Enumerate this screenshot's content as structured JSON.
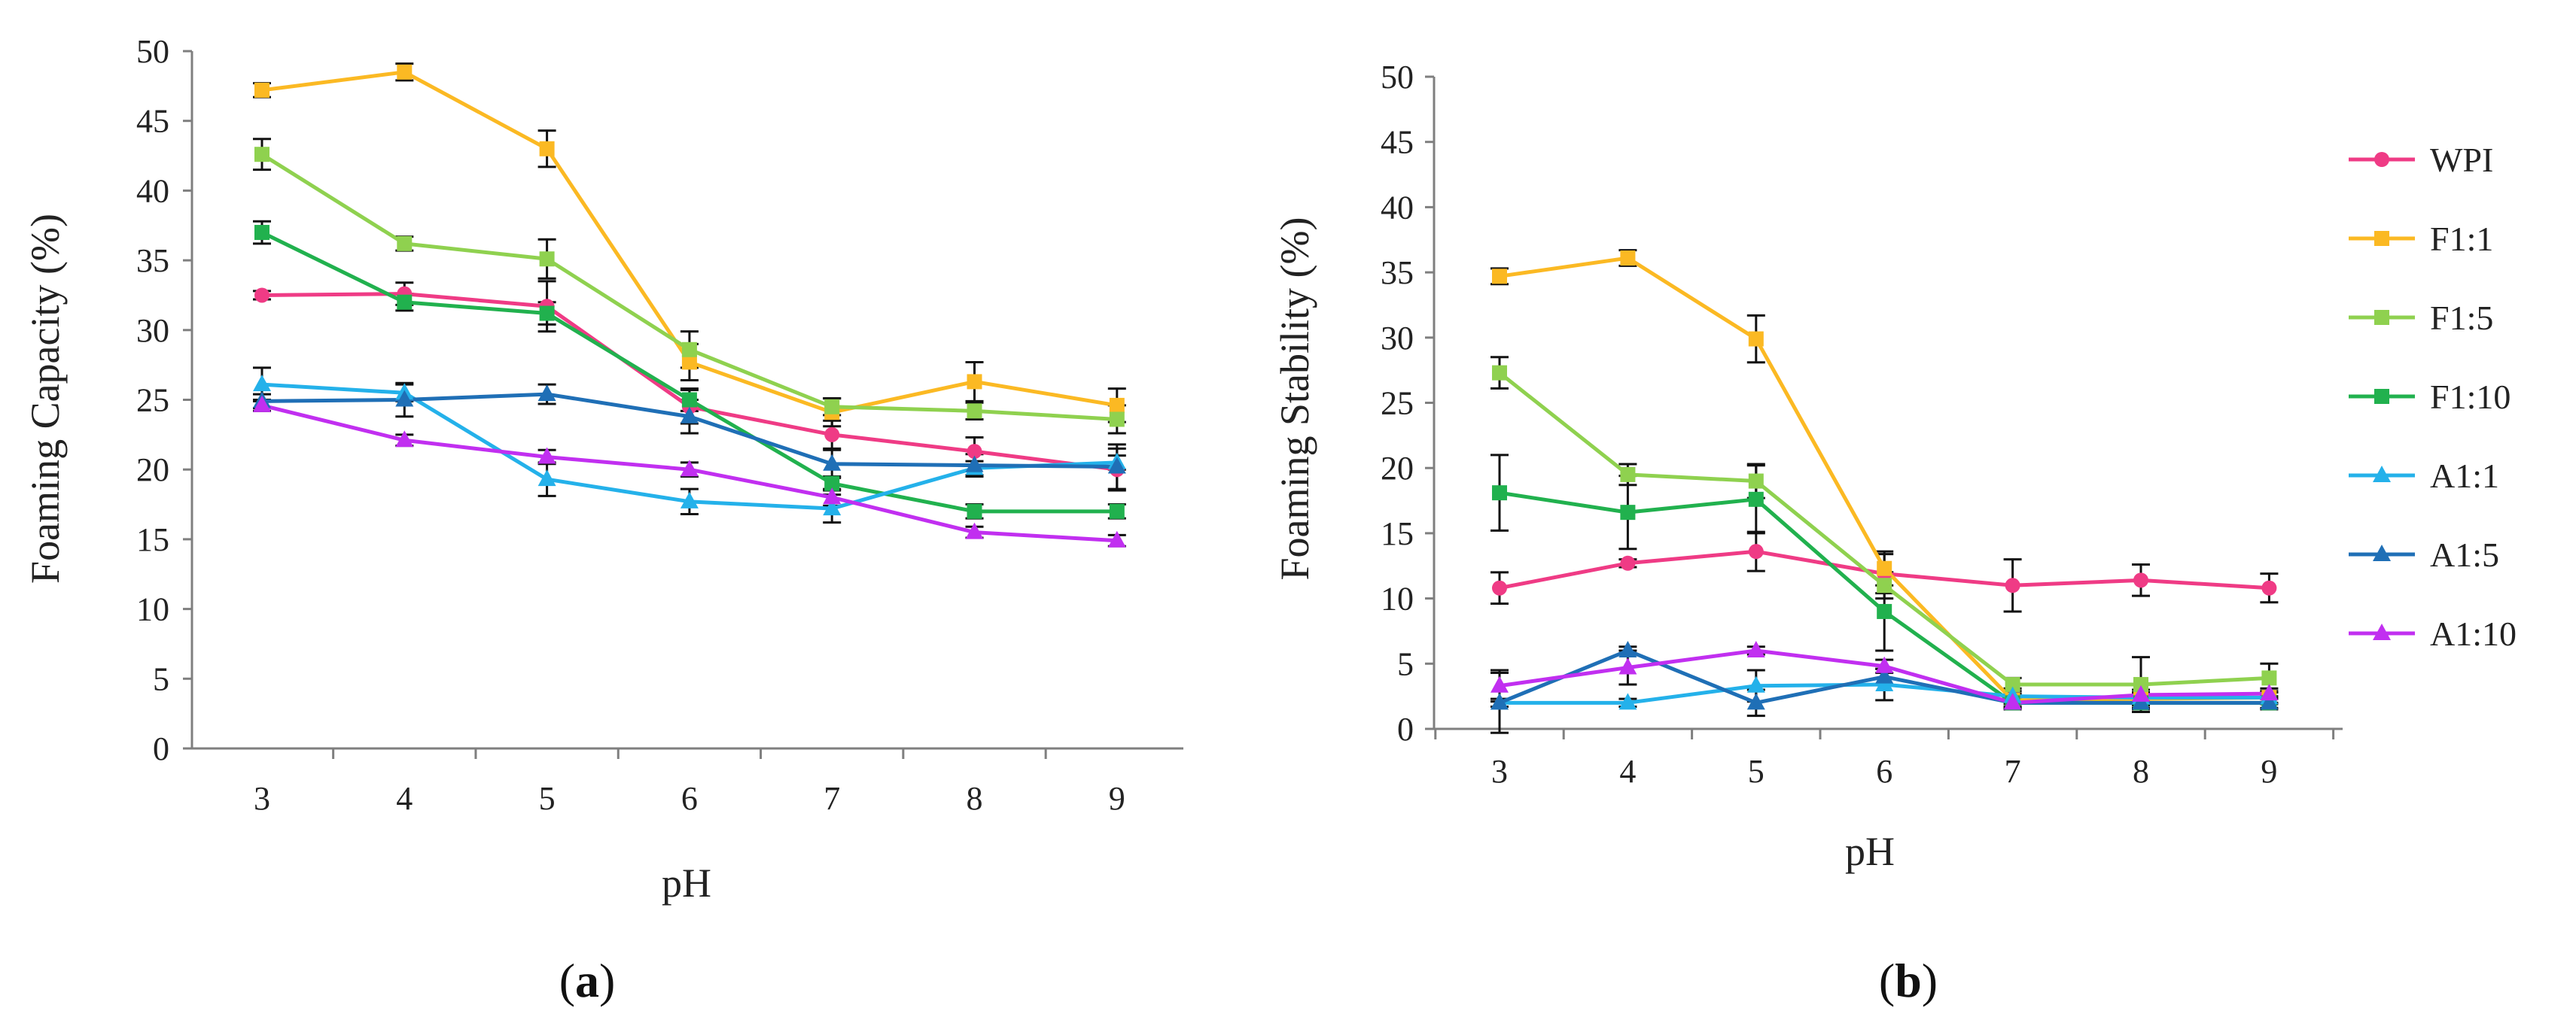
{
  "legend": {
    "placement": "right of panel (b)"
  },
  "chart_data": [
    {
      "type": "line",
      "panel_label_prefix": "(",
      "panel_label_letter": "a",
      "panel_label_suffix": ")",
      "xlabel": "pH",
      "ylabel": "Foaming Capacity  (%)",
      "x": [
        3,
        4,
        5,
        6,
        7,
        8,
        9
      ],
      "ylim": [
        0,
        50
      ],
      "yticks": [
        0,
        5,
        10,
        15,
        20,
        25,
        30,
        35,
        40,
        45,
        50
      ],
      "grid": false,
      "error_bars": true,
      "series": [
        {
          "name": "WPI",
          "color": "#ef3b85",
          "marker": "circle",
          "values": [
            32.5,
            32.6,
            31.7,
            24.5,
            22.5,
            21.3,
            20.0
          ],
          "errors": [
            0.3,
            0.8,
            1.8,
            1.2,
            1.0,
            1.0,
            1.5
          ]
        },
        {
          "name": "F1:1",
          "color": "#fbb923",
          "marker": "square",
          "values": [
            47.2,
            48.5,
            43.0,
            27.7,
            24.1,
            26.3,
            24.6
          ],
          "errors": [
            0.5,
            0.6,
            1.3,
            1.3,
            1.0,
            1.4,
            1.2
          ]
        },
        {
          "name": "F1:5",
          "color": "#8fd14f",
          "marker": "square",
          "values": [
            42.6,
            36.2,
            35.1,
            28.6,
            24.5,
            24.2,
            23.6
          ],
          "errors": [
            1.1,
            0.5,
            1.4,
            1.3,
            0.6,
            0.6,
            1.0
          ]
        },
        {
          "name": "F1:10",
          "color": "#21b14e",
          "marker": "square",
          "values": [
            37.0,
            32.0,
            31.2,
            25.0,
            19.0,
            17.0,
            17.0
          ],
          "errors": [
            0.8,
            0.6,
            0.8,
            0.8,
            0.5,
            0.5,
            0.5
          ]
        },
        {
          "name": "A1:1",
          "color": "#24b1ea",
          "marker": "triangle",
          "values": [
            26.1,
            25.5,
            19.3,
            17.7,
            17.2,
            20.1,
            20.5
          ],
          "errors": [
            1.2,
            0.6,
            1.2,
            0.9,
            1.0,
            0.5,
            0.5
          ]
        },
        {
          "name": "A1:5",
          "color": "#1f6fb6",
          "marker": "triangle",
          "values": [
            24.9,
            25.0,
            25.4,
            23.8,
            20.4,
            20.3,
            20.2
          ],
          "errors": [
            0.5,
            1.2,
            0.7,
            1.2,
            1.0,
            0.8,
            1.6
          ]
        },
        {
          "name": "A1:10",
          "color": "#c12ff0",
          "marker": "triangle",
          "values": [
            24.6,
            22.1,
            20.9,
            20.0,
            18.0,
            15.5,
            14.9
          ],
          "errors": [
            0.4,
            0.4,
            0.5,
            0.5,
            0.6,
            0.4,
            0.4
          ]
        }
      ]
    },
    {
      "type": "line",
      "panel_label_prefix": "(",
      "panel_label_letter": "b",
      "panel_label_suffix": ")",
      "xlabel": "pH",
      "ylabel": "Foaming Stability (%)",
      "x": [
        3,
        4,
        5,
        6,
        7,
        8,
        9
      ],
      "ylim": [
        0,
        50
      ],
      "yticks": [
        0,
        5,
        10,
        15,
        20,
        25,
        30,
        35,
        40,
        45,
        50
      ],
      "grid": false,
      "error_bars": true,
      "series": [
        {
          "name": "WPI",
          "color": "#ef3b85",
          "marker": "circle",
          "values": [
            10.8,
            12.7,
            13.6,
            11.9,
            11.0,
            11.4,
            10.8
          ],
          "errors": [
            1.2,
            0.3,
            1.5,
            1.5,
            2.0,
            1.2,
            1.1
          ]
        },
        {
          "name": "F1:1",
          "color": "#fbb923",
          "marker": "square",
          "values": [
            34.7,
            36.1,
            29.9,
            12.3,
            2.2,
            2.3,
            2.4
          ],
          "errors": [
            0.6,
            0.6,
            1.8,
            1.3,
            0.5,
            0.5,
            0.5
          ]
        },
        {
          "name": "F1:5",
          "color": "#8fd14f",
          "marker": "square",
          "values": [
            27.3,
            19.5,
            19.0,
            11.0,
            3.4,
            3.4,
            3.9
          ],
          "errors": [
            1.2,
            0.8,
            1.3,
            1.0,
            0.5,
            2.1,
            1.1
          ]
        },
        {
          "name": "F1:10",
          "color": "#21b14e",
          "marker": "square",
          "values": [
            18.1,
            16.6,
            17.6,
            9.0,
            2.0,
            2.0,
            2.0
          ],
          "errors": [
            2.9,
            2.8,
            2.6,
            3.0,
            0.5,
            0.5,
            0.5
          ]
        },
        {
          "name": "A1:1",
          "color": "#24b1ea",
          "marker": "triangle",
          "values": [
            2.0,
            2.0,
            3.3,
            3.4,
            2.5,
            2.4,
            2.4
          ],
          "errors": [
            0.3,
            0.3,
            1.2,
            1.2,
            0.6,
            0.4,
            0.4
          ]
        },
        {
          "name": "A1:5",
          "color": "#1f6fb6",
          "marker": "triangle",
          "values": [
            2.0,
            6.0,
            2.0,
            4.0,
            2.0,
            2.0,
            2.0
          ],
          "errors": [
            2.3,
            0.3,
            1.0,
            0.6,
            0.4,
            0.4,
            0.4
          ]
        },
        {
          "name": "A1:10",
          "color": "#c12ff0",
          "marker": "triangle",
          "values": [
            3.3,
            4.7,
            6.0,
            4.8,
            2.0,
            2.6,
            2.7
          ],
          "errors": [
            1.2,
            1.3,
            0.3,
            0.5,
            0.4,
            0.4,
            0.4
          ]
        }
      ]
    }
  ]
}
